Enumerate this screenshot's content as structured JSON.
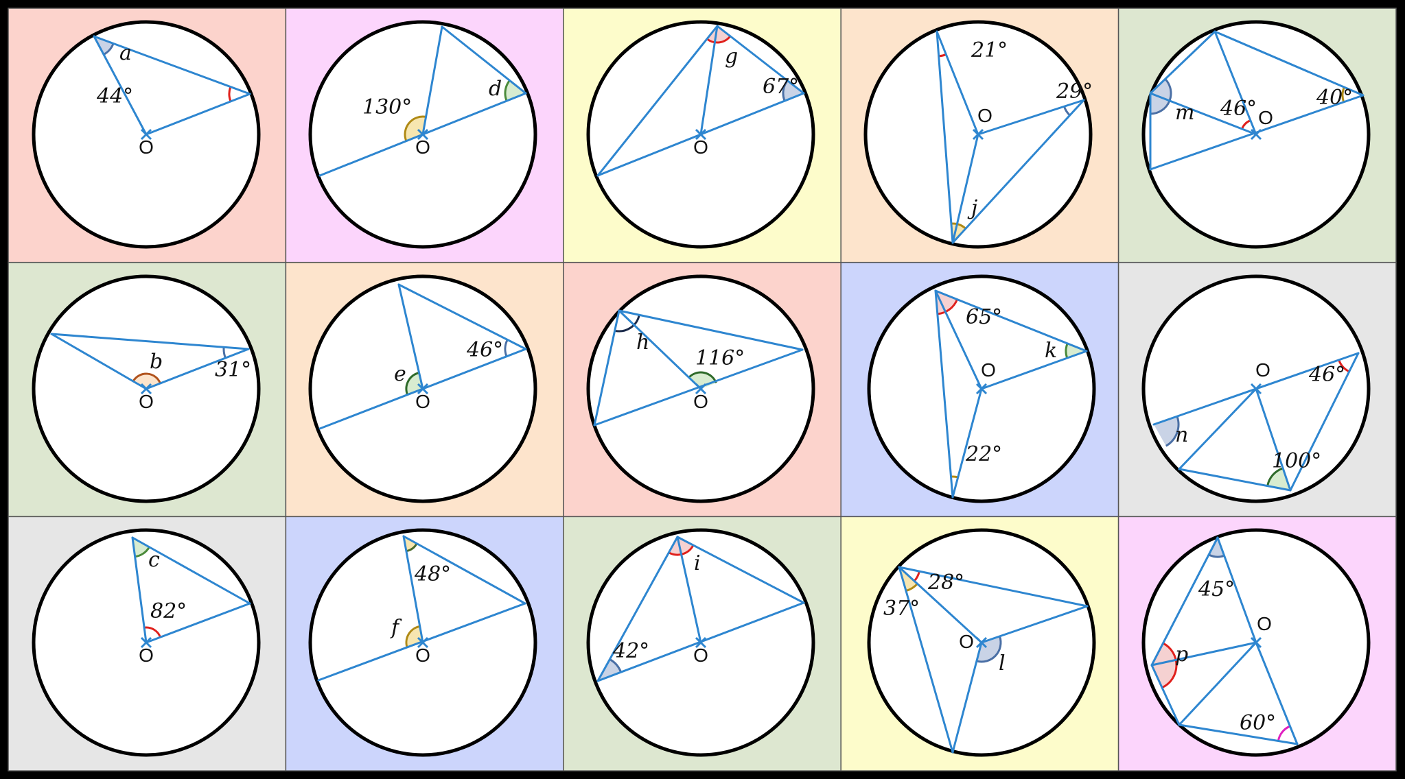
{
  "colors": {
    "frame": "#000000",
    "line": "#2e86d0",
    "circle_stroke": "#000000",
    "circle_fill": "#ffffff",
    "cell_border": "#555555"
  },
  "cells": [
    {
      "id": "a",
      "bg": "#fcd3cc",
      "letter": "a",
      "shown": [
        "44°"
      ],
      "center_label": "O",
      "arcs": [
        {
          "fill": "#c9d3e6",
          "stroke": "#4a6fa5"
        },
        {
          "fill": "none",
          "stroke": "#e0201c"
        }
      ]
    },
    {
      "id": "d",
      "bg": "#fcd5fc",
      "letter": "d",
      "shown": [
        "130°"
      ],
      "center_label": "O",
      "arcs": [
        {
          "fill": "#f7e6b0",
          "stroke": "#b08a15"
        },
        {
          "fill": "#d8ecd0",
          "stroke": "#4a8a3a"
        }
      ]
    },
    {
      "id": "g",
      "bg": "#fdfccb",
      "letter": "g",
      "shown": [
        "67°"
      ],
      "center_label": "O",
      "arcs": [
        {
          "fill": "#f5d1d1",
          "stroke": "#e0201c"
        },
        {
          "fill": "#c9d3e6",
          "stroke": "#4a6fa5"
        }
      ]
    },
    {
      "id": "j",
      "bg": "#fde4cc",
      "letter": "j",
      "shown": [
        "21°",
        "29°"
      ],
      "center_label": "O",
      "arcs": [
        {
          "fill": "none",
          "stroke": "#e0201c"
        },
        {
          "fill": "none",
          "stroke": "#4a6fa5"
        },
        {
          "fill": "#f7e6b0",
          "stroke": "#b08a15"
        }
      ]
    },
    {
      "id": "m",
      "bg": "#dde7d0",
      "letter": "m",
      "shown": [
        "46°",
        "40°"
      ],
      "center_label": "O",
      "arcs": [
        {
          "fill": "#c9d3e6",
          "stroke": "#4a6fa5"
        },
        {
          "fill": "none",
          "stroke": "#e0201c"
        },
        {
          "fill": "none",
          "stroke": "#b08a15"
        }
      ]
    },
    {
      "id": "b",
      "bg": "#dde7d0",
      "letter": "b",
      "shown": [
        "31°"
      ],
      "center_label": "O",
      "arcs": [
        {
          "fill": "#fce4cc",
          "stroke": "#b0521c"
        },
        {
          "fill": "none",
          "stroke": "#4a6fa5"
        }
      ]
    },
    {
      "id": "e",
      "bg": "#fde4cc",
      "letter": "e",
      "shown": [
        "46°"
      ],
      "center_label": "O",
      "arcs": [
        {
          "fill": "#d8ecd0",
          "stroke": "#2e6a2a"
        },
        {
          "fill": "none",
          "stroke": "#4a6fa5"
        }
      ]
    },
    {
      "id": "h",
      "bg": "#fcd3cc",
      "letter": "h",
      "shown": [
        "116°"
      ],
      "center_label": "O",
      "arcs": [
        {
          "fill": "#ffffff",
          "stroke": "#1a2a4a"
        },
        {
          "fill": "#d8ecd0",
          "stroke": "#2e6a2a"
        }
      ]
    },
    {
      "id": "k",
      "bg": "#ccd5fc",
      "letter": "k",
      "shown": [
        "65°",
        "22°"
      ],
      "center_label": "O",
      "arcs": [
        {
          "fill": "#f5d1d1",
          "stroke": "#e0201c"
        },
        {
          "fill": "none",
          "stroke": "#b08a15"
        },
        {
          "fill": "#d8ecd0",
          "stroke": "#4a8a3a"
        }
      ]
    },
    {
      "id": "n",
      "bg": "#e6e6e6",
      "letter": "n",
      "shown": [
        "46°",
        "100°"
      ],
      "center_label": "O",
      "arcs": [
        {
          "fill": "none",
          "stroke": "#e0201c"
        },
        {
          "fill": "#c9d3e6",
          "stroke": "#4a6fa5"
        },
        {
          "fill": "#d8ecd0",
          "stroke": "#2e6a2a"
        }
      ]
    },
    {
      "id": "c",
      "bg": "#e6e6e6",
      "letter": "c",
      "shown": [
        "82°"
      ],
      "center_label": "O",
      "arcs": [
        {
          "fill": "#d8ecd0",
          "stroke": "#4a8a3a"
        },
        {
          "fill": "none",
          "stroke": "#e0201c"
        }
      ]
    },
    {
      "id": "f",
      "bg": "#ccd5fc",
      "letter": "f",
      "shown": [
        "48°"
      ],
      "center_label": "O",
      "arcs": [
        {
          "fill": "#f7e6b0",
          "stroke": "#4a6a2a"
        },
        {
          "fill": "#f7e6b0",
          "stroke": "#b08a15"
        }
      ]
    },
    {
      "id": "i",
      "bg": "#dde7d0",
      "letter": "i",
      "shown": [
        "42°"
      ],
      "center_label": "O",
      "arcs": [
        {
          "fill": "#f5d1d1",
          "stroke": "#e0201c"
        },
        {
          "fill": "#c9d3e6",
          "stroke": "#4a6fa5"
        }
      ]
    },
    {
      "id": "l",
      "bg": "#fdfccb",
      "letter": "l",
      "shown": [
        "28°",
        "37°"
      ],
      "center_label": "O",
      "arcs": [
        {
          "fill": "none",
          "stroke": "#e0201c"
        },
        {
          "fill": "#f7e6b0",
          "stroke": "#b08a15"
        },
        {
          "fill": "#c9d3e6",
          "stroke": "#4a6fa5"
        }
      ]
    },
    {
      "id": "p",
      "bg": "#fcd5fc",
      "letter": "p",
      "shown": [
        "45°",
        "60°"
      ],
      "center_label": "O",
      "arcs": [
        {
          "fill": "#c9d3e6",
          "stroke": "#4a6fa5"
        },
        {
          "fill": "#f5d1d1",
          "stroke": "#e0201c"
        },
        {
          "fill": "none",
          "stroke": "#e020c0"
        }
      ]
    }
  ]
}
